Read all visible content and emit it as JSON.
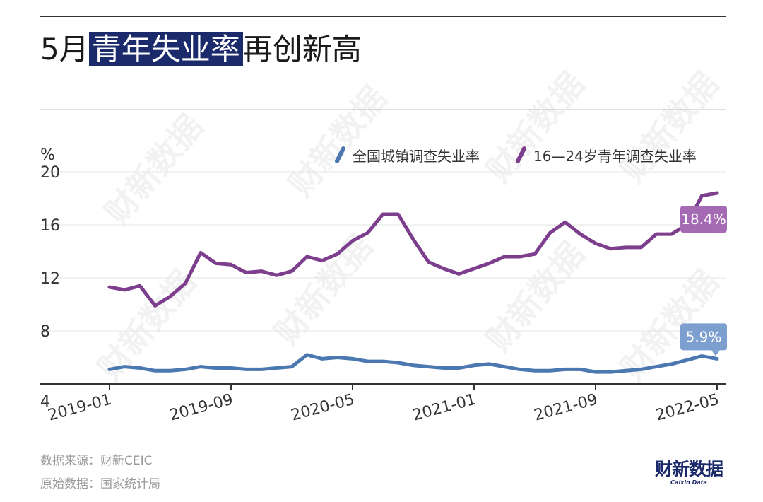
{
  "header": {
    "title_prefix": "5月",
    "title_highlight": "青年失业率",
    "title_suffix": "再创新高"
  },
  "footer": {
    "source": "数据来源：财新CEIC",
    "original": "原始数据：国家统计局"
  },
  "logo": {
    "cn": "财新数据",
    "en": "Caixin Data"
  },
  "watermark": "财新数据",
  "colors": {
    "series1": "#4b78b0",
    "series2": "#7d3e8d",
    "title_highlight": "#1b2a6b",
    "label1": "#7d9fd0",
    "label2": "#a56ab4"
  },
  "chart_data": {
    "type": "line",
    "ylabel": "%",
    "ylim": [
      4,
      20
    ],
    "yticks": [
      4,
      8,
      12,
      16,
      20
    ],
    "xtick_labels": [
      "2019-01",
      "2019-09",
      "2020-05",
      "2021-01",
      "2021-09",
      "2022-05"
    ],
    "x": [
      "2019-01",
      "2019-02",
      "2019-03",
      "2019-04",
      "2019-05",
      "2019-06",
      "2019-07",
      "2019-08",
      "2019-09",
      "2019-10",
      "2019-11",
      "2019-12",
      "2020-01",
      "2020-02",
      "2020-03",
      "2020-04",
      "2020-05",
      "2020-06",
      "2020-07",
      "2020-08",
      "2020-09",
      "2020-10",
      "2020-11",
      "2020-12",
      "2021-01",
      "2021-02",
      "2021-03",
      "2021-04",
      "2021-05",
      "2021-06",
      "2021-07",
      "2021-08",
      "2021-09",
      "2021-10",
      "2021-11",
      "2021-12",
      "2022-01",
      "2022-02",
      "2022-03",
      "2022-04",
      "2022-05"
    ],
    "series": [
      {
        "name": "全国城镇调查失业率",
        "values": [
          5.1,
          5.3,
          5.2,
          5.0,
          5.0,
          5.1,
          5.3,
          5.2,
          5.2,
          5.1,
          5.1,
          5.2,
          5.3,
          6.2,
          5.9,
          6.0,
          5.9,
          5.7,
          5.7,
          5.6,
          5.4,
          5.3,
          5.2,
          5.2,
          5.4,
          5.5,
          5.3,
          5.1,
          5.0,
          5.0,
          5.1,
          5.1,
          4.9,
          4.9,
          5.0,
          5.1,
          5.3,
          5.5,
          5.8,
          6.1,
          5.9
        ],
        "end_label": "5.9%"
      },
      {
        "name": "16—24岁青年调查失业率",
        "values": [
          11.3,
          11.1,
          11.4,
          9.9,
          10.6,
          11.6,
          13.9,
          13.1,
          13.0,
          12.4,
          12.5,
          12.2,
          12.5,
          13.6,
          13.3,
          13.8,
          14.8,
          15.4,
          16.8,
          16.8,
          14.9,
          13.2,
          12.7,
          12.3,
          12.7,
          13.1,
          13.6,
          13.6,
          13.8,
          15.4,
          16.2,
          15.3,
          14.6,
          14.2,
          14.3,
          14.3,
          15.3,
          15.3,
          16.0,
          18.2,
          18.4
        ],
        "end_label": "18.4%"
      }
    ]
  }
}
